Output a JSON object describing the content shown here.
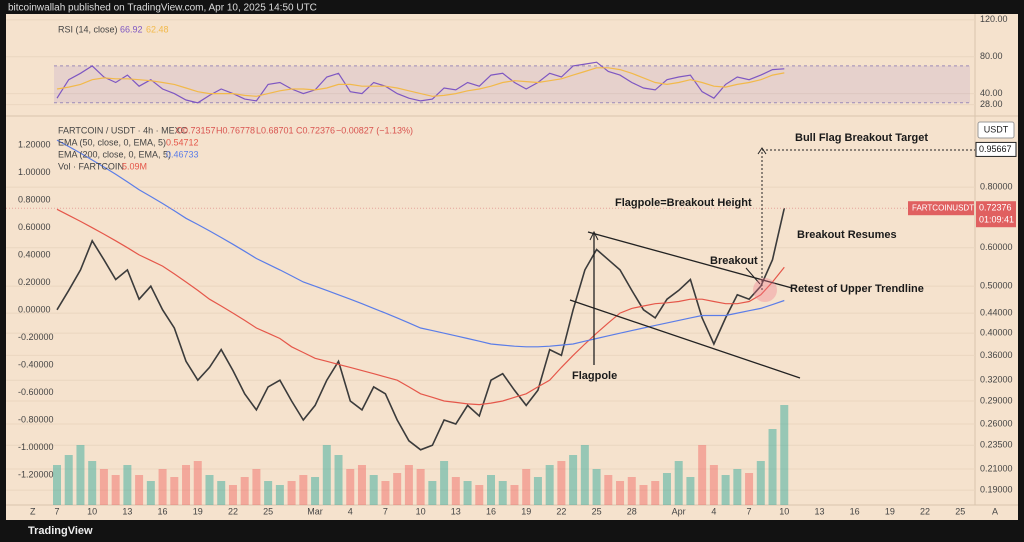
{
  "header": {
    "title": "bitcoinwallah published on TradingView.com, Apr 10, 2025 14:50 UTC"
  },
  "ui": {
    "zoom": "Z",
    "auto": "A",
    "currency": "USDT",
    "footer": "TradingView"
  },
  "chart_data": [
    {
      "type": "line",
      "series": [
        {
          "name": "RSI (14, close)",
          "color": "#7e57c2",
          "values": [
            35,
            55,
            62,
            70,
            58,
            52,
            60,
            48,
            55,
            45,
            40,
            33,
            30,
            38,
            45,
            40,
            34,
            32,
            50,
            52,
            45,
            40,
            44,
            58,
            62,
            42,
            40,
            52,
            48,
            40,
            35,
            32,
            34,
            46,
            44,
            52,
            48,
            60,
            62,
            52,
            45,
            52,
            62,
            58,
            70,
            72,
            74,
            64,
            60,
            52,
            46,
            44,
            55,
            58,
            60,
            42,
            35,
            50,
            58,
            55,
            60,
            66,
            66.92,
            null,
            null,
            null,
            null,
            null,
            null,
            null,
            null,
            null,
            null,
            null,
            null,
            null,
            null,
            null
          ]
        },
        {
          "color": "#f2b94a",
          "values": [
            45,
            47,
            50,
            55,
            57,
            56,
            56,
            55,
            54,
            52,
            50,
            46,
            42,
            40,
            40,
            40,
            38,
            37,
            40,
            43,
            45,
            45,
            44,
            46,
            50,
            50,
            48,
            48,
            48,
            46,
            43,
            40,
            37,
            38,
            40,
            43,
            45,
            48,
            52,
            54,
            53,
            52,
            54,
            56,
            60,
            64,
            68,
            68,
            66,
            62,
            57,
            52,
            50,
            52,
            55,
            52,
            48,
            47,
            50,
            52,
            55,
            60,
            62.48,
            null,
            null,
            null,
            null,
            null,
            null,
            null,
            null,
            null,
            null,
            null,
            null,
            null,
            null,
            null
          ]
        }
      ],
      "legend_values": [
        66.92,
        62.48
      ],
      "band": [
        30,
        70
      ],
      "ylim": [
        20,
        122
      ],
      "yticks": [
        {
          "value": 120,
          "label": "120.00"
        },
        {
          "value": 80,
          "label": "80.00"
        },
        {
          "value": 40,
          "label": "40.00"
        },
        {
          "value": 28,
          "label": "28.00"
        }
      ]
    },
    {
      "type": "line",
      "log_scale": true,
      "categories": [
        "7",
        null,
        null,
        "10",
        null,
        null,
        "13",
        null,
        null,
        "16",
        null,
        null,
        "19",
        null,
        null,
        "22",
        null,
        null,
        "25",
        null,
        null,
        null,
        "Mar",
        null,
        null,
        "4",
        null,
        null,
        "7",
        null,
        null,
        "10",
        null,
        null,
        "13",
        null,
        null,
        "16",
        null,
        null,
        "19",
        null,
        null,
        "22",
        null,
        null,
        "25",
        null,
        null,
        "28",
        null,
        null,
        null,
        "Apr",
        null,
        null,
        "4",
        null,
        null,
        "7",
        null,
        null,
        "10",
        null,
        null,
        "13",
        null,
        null,
        "16",
        null,
        null,
        "19",
        null,
        null,
        "22",
        null,
        null,
        "25"
      ],
      "series": [
        {
          "name": "FARTCOIN / USDT · 4h · MEXC",
          "color": "#3b3b3b",
          "values": [
            0.447,
            0.49,
            0.54,
            0.62,
            0.567,
            0.516,
            0.54,
            0.47,
            0.5,
            0.447,
            0.41,
            0.35,
            0.32,
            0.34,
            0.37,
            0.335,
            0.3,
            0.278,
            0.31,
            0.32,
            0.29,
            0.265,
            0.284,
            0.32,
            0.35,
            0.29,
            0.278,
            0.31,
            0.3,
            0.265,
            0.24,
            0.23,
            0.235,
            0.265,
            0.26,
            0.284,
            0.27,
            0.32,
            0.33,
            0.305,
            0.284,
            0.305,
            0.37,
            0.36,
            0.447,
            0.54,
            0.595,
            0.567,
            0.54,
            0.49,
            0.447,
            0.43,
            0.47,
            0.49,
            0.516,
            0.43,
            0.38,
            0.43,
            0.48,
            0.47,
            0.5,
            0.567,
            0.72376,
            null,
            null,
            null,
            null,
            null,
            null,
            null,
            null,
            null,
            null,
            null,
            null,
            null,
            null,
            null
          ]
        },
        {
          "name": "EMA (50, close, 0, EMA, 5)",
          "color": "#e5574a",
          "values": [
            0.72,
            0.7,
            0.68,
            0.66,
            0.64,
            0.62,
            0.6,
            0.58,
            0.565,
            0.55,
            0.53,
            0.51,
            0.49,
            0.47,
            0.455,
            0.44,
            0.425,
            0.41,
            0.4,
            0.39,
            0.375,
            0.365,
            0.355,
            0.35,
            0.345,
            0.34,
            0.335,
            0.33,
            0.325,
            0.32,
            0.31,
            0.3,
            0.295,
            0.29,
            0.288,
            0.286,
            0.285,
            0.287,
            0.29,
            0.295,
            0.3,
            0.31,
            0.32,
            0.34,
            0.36,
            0.38,
            0.4,
            0.42,
            0.44,
            0.45,
            0.455,
            0.46,
            0.462,
            0.465,
            0.47,
            0.47,
            0.465,
            0.46,
            0.46,
            0.465,
            0.48,
            0.51,
            0.547,
            null,
            null,
            null,
            null,
            null,
            null,
            null,
            null,
            null,
            null,
            null,
            null,
            null,
            null,
            null
          ]
        },
        {
          "name": "EMA (200, close, 0, EMA, 5)",
          "color": "#5b7de8",
          "values": [
            1.0,
            0.97,
            0.94,
            0.91,
            0.88,
            0.85,
            0.82,
            0.79,
            0.765,
            0.74,
            0.715,
            0.69,
            0.67,
            0.65,
            0.63,
            0.61,
            0.59,
            0.57,
            0.555,
            0.54,
            0.525,
            0.51,
            0.5,
            0.49,
            0.48,
            0.47,
            0.46,
            0.45,
            0.44,
            0.43,
            0.42,
            0.41,
            0.405,
            0.4,
            0.395,
            0.39,
            0.385,
            0.38,
            0.378,
            0.376,
            0.375,
            0.375,
            0.376,
            0.378,
            0.38,
            0.385,
            0.39,
            0.395,
            0.4,
            0.405,
            0.41,
            0.415,
            0.42,
            0.425,
            0.43,
            0.435,
            0.435,
            0.435,
            0.44,
            0.445,
            0.45,
            0.458,
            0.467,
            null,
            null,
            null,
            null,
            null,
            null,
            null,
            null,
            null,
            null,
            null,
            null,
            null,
            null,
            null
          ]
        },
        {
          "name": "Vol · FARTCOIN",
          "type": "bar",
          "axis": "volume",
          "values": [
            20,
            25,
            30,
            22,
            18,
            15,
            20,
            15,
            12,
            18,
            14,
            20,
            22,
            15,
            12,
            10,
            14,
            18,
            12,
            10,
            12,
            15,
            14,
            30,
            25,
            18,
            20,
            15,
            12,
            16,
            20,
            18,
            12,
            22,
            14,
            12,
            10,
            15,
            12,
            10,
            18,
            14,
            20,
            22,
            25,
            30,
            18,
            15,
            12,
            14,
            10,
            12,
            16,
            22,
            14,
            30,
            20,
            15,
            18,
            16,
            22,
            38,
            50,
            null,
            null,
            null,
            null,
            null,
            null,
            null,
            null,
            null,
            null,
            null,
            null,
            null,
            null,
            null
          ]
        }
      ],
      "legend_values": [
        null,
        0.54712,
        0.46733,
        "5.09M"
      ],
      "ohlc": [
        "O0.73157",
        "H0.76778",
        "L0.68701",
        "C0.72376",
        "−0.00827 (−1.13%)"
      ],
      "target": 0.95667,
      "last_price": {
        "symbol": "FARTCOINUSDT",
        "price": 0.72376,
        "countdown": "01:09:41"
      },
      "ylim": [
        0.177,
        1.1
      ],
      "yticks": [
        {
          "value": 0.8,
          "label": "0.80000"
        },
        {
          "value": 0.6,
          "label": "0.60000"
        },
        {
          "value": 0.5,
          "label": "0.50000"
        },
        {
          "value": 0.44,
          "label": "0.44000"
        },
        {
          "value": 0.4,
          "label": "0.40000"
        },
        {
          "value": 0.36,
          "label": "0.36000"
        },
        {
          "value": 0.32,
          "label": "0.32000"
        },
        {
          "value": 0.29,
          "label": "0.29000"
        },
        {
          "value": 0.26,
          "label": "0.26000"
        },
        {
          "value": 0.235,
          "label": "0.23500"
        },
        {
          "value": 0.21,
          "label": "0.21000"
        },
        {
          "value": 0.19,
          "label": "0.19000"
        }
      ],
      "y2lim": [
        -1.418,
        1.382
      ],
      "y2ticks": [
        {
          "value": 1.2,
          "label": "1.20000"
        },
        {
          "value": 1.0,
          "label": "1.00000"
        },
        {
          "value": 0.8,
          "label": "0.80000"
        },
        {
          "value": 0.6,
          "label": "0.60000"
        },
        {
          "value": 0.4,
          "label": "0.40000"
        },
        {
          "value": 0.2,
          "label": "0.20000"
        },
        {
          "value": 0,
          "label": "0.00000"
        },
        {
          "value": -0.2,
          "label": "-0.20000"
        },
        {
          "value": -0.4,
          "label": "-0.40000"
        },
        {
          "value": -0.6,
          "label": "-0.60000"
        },
        {
          "value": -0.8,
          "label": "-0.80000"
        },
        {
          "value": -1.0,
          "label": "-1.00000"
        },
        {
          "value": -1.2,
          "label": "-1.20000"
        }
      ],
      "annotations": [
        "Bull Flag Breakout Target",
        "Flagpole=Breakout Height",
        "Breakout Resumes",
        "Breakout",
        "Retest of Upper Trendline",
        "Flagpole"
      ]
    }
  ]
}
